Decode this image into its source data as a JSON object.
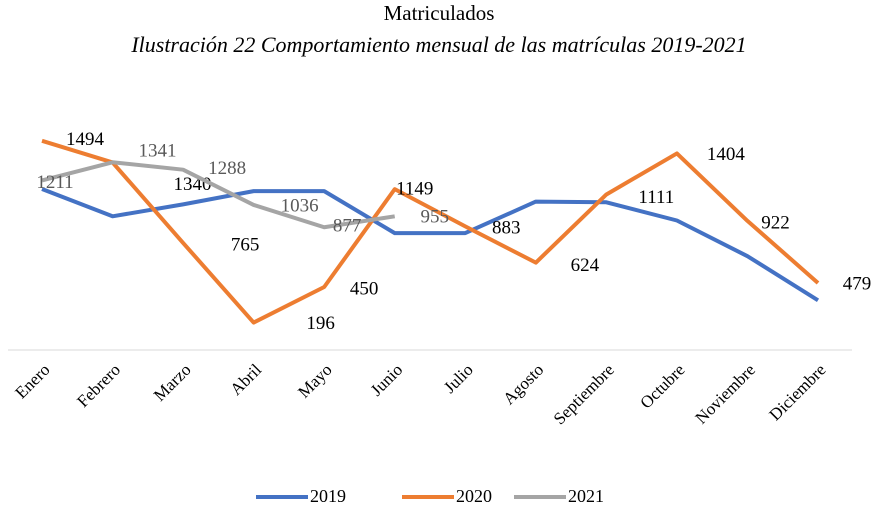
{
  "chart_data": {
    "type": "line",
    "title": "Matriculados",
    "subtitle": "Ilustración 22 Comportamiento mensual de las matrículas 2019-2021",
    "categories": [
      "Enero",
      "Febrero",
      "Marzo",
      "Abril",
      "Mayo",
      "Junio",
      "Julio",
      "Agosto",
      "Septiembre",
      "Octubre",
      "Noviembre",
      "Diciembre"
    ],
    "ylim": [
      0,
      1600
    ],
    "series": [
      {
        "name": "2019",
        "color": "#4472c4",
        "values": [
          1150,
          955,
          1040,
          1135,
          1135,
          835,
          835,
          1060,
          1055,
          925,
          670,
          355
        ]
      },
      {
        "name": "2020",
        "color": "#ed7d31",
        "values": [
          1494,
          1340,
          765,
          196,
          450,
          1149,
          883,
          624,
          1111,
          1404,
          922,
          479
        ],
        "show_labels": true
      },
      {
        "name": "2021",
        "color": "#a5a5a5",
        "values": [
          1211,
          1341,
          1288,
          1036,
          877,
          955,
          null,
          null,
          null,
          null,
          null,
          null
        ],
        "show_labels": true
      }
    ]
  }
}
